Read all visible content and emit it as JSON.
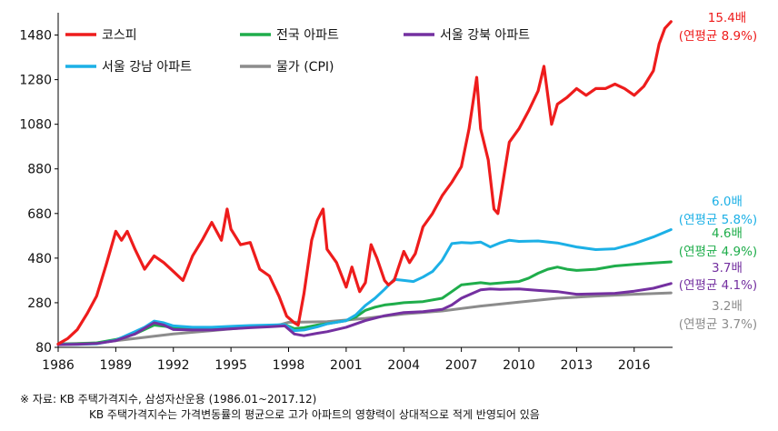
{
  "chart_data": {
    "type": "line",
    "title": "",
    "xlabel": "",
    "ylabel": "",
    "xlim": [
      1986.0,
      2018.0
    ],
    "ylim": [
      80,
      1580
    ],
    "y_ticks": [
      80,
      280,
      480,
      680,
      880,
      1080,
      1280,
      1480
    ],
    "x_ticks": [
      1986,
      1989,
      1992,
      1995,
      1998,
      2001,
      2004,
      2007,
      2010,
      2013,
      2016
    ],
    "grid": false,
    "legend_position": "top-left",
    "series": [
      {
        "name": "코스피",
        "color": "#ee1c1c",
        "multiple": "15.4배",
        "cagr": "(연평균 8.9%)",
        "x": [
          1986.0,
          1986.5,
          1987.0,
          1987.5,
          1988.0,
          1988.5,
          1989.0,
          1989.3,
          1989.6,
          1990.0,
          1990.5,
          1991.0,
          1991.5,
          1992.0,
          1992.5,
          1993.0,
          1993.5,
          1994.0,
          1994.5,
          1994.8,
          1995.0,
          1995.5,
          1996.0,
          1996.5,
          1997.0,
          1997.5,
          1997.9,
          1998.3,
          1998.5,
          1998.8,
          1999.2,
          1999.5,
          1999.8,
          2000.0,
          2000.5,
          2001.0,
          2001.3,
          2001.7,
          2002.0,
          2002.3,
          2002.6,
          2003.0,
          2003.2,
          2003.5,
          2004.0,
          2004.3,
          2004.6,
          2005.0,
          2005.5,
          2006.0,
          2006.5,
          2007.0,
          2007.4,
          2007.8,
          2008.0,
          2008.4,
          2008.7,
          2008.9,
          2009.2,
          2009.5,
          2010.0,
          2010.5,
          2011.0,
          2011.3,
          2011.7,
          2012.0,
          2012.5,
          2013.0,
          2013.5,
          2014.0,
          2014.5,
          2015.0,
          2015.5,
          2016.0,
          2016.5,
          2017.0,
          2017.3,
          2017.6,
          2017.92
        ],
        "values": [
          95,
          120,
          160,
          230,
          310,
          450,
          600,
          560,
          600,
          520,
          430,
          490,
          460,
          420,
          380,
          490,
          560,
          640,
          560,
          700,
          610,
          540,
          550,
          430,
          400,
          310,
          220,
          190,
          180,
          320,
          560,
          650,
          700,
          520,
          460,
          350,
          440,
          330,
          370,
          540,
          480,
          380,
          360,
          380,
          510,
          460,
          500,
          620,
          680,
          760,
          820,
          890,
          1060,
          1290,
          1060,
          920,
          700,
          680,
          840,
          1000,
          1060,
          1140,
          1230,
          1340,
          1080,
          1170,
          1200,
          1240,
          1210,
          1240,
          1240,
          1260,
          1240,
          1210,
          1250,
          1320,
          1440,
          1510,
          1540
        ]
      },
      {
        "name": "전국 아파트",
        "color": "#1fad4b",
        "multiple": "4.6배",
        "cagr": "(연평균 4.9%)",
        "x": [
          1986.0,
          1987.0,
          1988.0,
          1989.0,
          1990.0,
          1990.5,
          1991.0,
          1991.5,
          1992.0,
          1993.0,
          1994.0,
          1995.0,
          1996.0,
          1997.0,
          1997.8,
          1998.3,
          1998.8,
          1999.5,
          2000.0,
          2001.0,
          2001.5,
          2002.0,
          2002.5,
          2003.0,
          2003.5,
          2004.0,
          2005.0,
          2006.0,
          2006.5,
          2007.0,
          2008.0,
          2008.5,
          2009.0,
          2009.5,
          2010.0,
          2010.5,
          2011.0,
          2011.5,
          2012.0,
          2012.5,
          2013.0,
          2014.0,
          2015.0,
          2016.0,
          2017.0,
          2017.92
        ],
        "values": [
          95,
          96,
          100,
          115,
          140,
          160,
          180,
          175,
          168,
          166,
          167,
          170,
          173,
          178,
          182,
          164,
          168,
          180,
          186,
          200,
          216,
          246,
          260,
          270,
          275,
          280,
          285,
          300,
          330,
          360,
          370,
          365,
          368,
          372,
          375,
          390,
          412,
          430,
          440,
          430,
          425,
          430,
          445,
          452,
          458,
          463
        ]
      },
      {
        "name": "서울 강북 아파트",
        "color": "#7430a0",
        "multiple": "3.7배",
        "cagr": "(연평균 4.1%)",
        "x": [
          1986.0,
          1987.0,
          1988.0,
          1989.0,
          1990.0,
          1990.5,
          1991.0,
          1991.5,
          1992.0,
          1993.0,
          1994.0,
          1995.0,
          1996.0,
          1997.0,
          1997.8,
          1998.3,
          1998.8,
          1999.5,
          2000.0,
          2001.0,
          2002.0,
          2003.0,
          2004.0,
          2005.0,
          2006.0,
          2006.5,
          2007.0,
          2008.0,
          2008.5,
          2009.0,
          2010.0,
          2011.0,
          2012.0,
          2013.0,
          2014.0,
          2015.0,
          2016.0,
          2017.0,
          2017.92
        ],
        "values": [
          92,
          94,
          97,
          110,
          140,
          165,
          190,
          180,
          160,
          158,
          158,
          163,
          168,
          172,
          176,
          140,
          132,
          143,
          150,
          170,
          200,
          222,
          236,
          240,
          250,
          270,
          300,
          338,
          342,
          340,
          342,
          335,
          330,
          318,
          320,
          322,
          332,
          345,
          366
        ]
      },
      {
        "name": "서울 강남 아파트",
        "color": "#1cb0e6",
        "multiple": "6.0배",
        "cagr": "(연평균 5.8%)",
        "x": [
          1986.0,
          1987.0,
          1988.0,
          1989.0,
          1990.0,
          1990.5,
          1991.0,
          1991.5,
          1992.0,
          1993.0,
          1994.0,
          1995.0,
          1996.0,
          1997.0,
          1997.8,
          1998.3,
          1998.8,
          1999.5,
          2000.0,
          2001.0,
          2001.5,
          2002.0,
          2002.5,
          2003.0,
          2003.5,
          2004.0,
          2004.5,
          2005.0,
          2005.5,
          2006.0,
          2006.5,
          2007.0,
          2007.5,
          2008.0,
          2008.5,
          2009.0,
          2009.5,
          2010.0,
          2011.0,
          2012.0,
          2013.0,
          2014.0,
          2015.0,
          2016.0,
          2017.0,
          2017.92
        ],
        "values": [
          93,
          93,
          96,
          112,
          150,
          170,
          198,
          190,
          176,
          170,
          170,
          174,
          178,
          180,
          182,
          155,
          158,
          172,
          185,
          200,
          225,
          268,
          300,
          340,
          385,
          380,
          375,
          395,
          420,
          470,
          545,
          550,
          548,
          552,
          530,
          548,
          560,
          555,
          557,
          548,
          530,
          518,
          522,
          545,
          575,
          608
        ]
      },
      {
        "name": "물가 (CPI)",
        "color": "#8c8c8c",
        "multiple": "3.2배",
        "cagr": "(연평균 3.7%)",
        "x": [
          1986.0,
          1988.0,
          1990.0,
          1992.0,
          1994.0,
          1996.0,
          1997.5,
          1998.0,
          2000.0,
          2002.0,
          2004.0,
          2006.0,
          2008.0,
          2010.0,
          2012.0,
          2014.0,
          2016.0,
          2017.92
        ],
        "values": [
          95,
          100,
          120,
          140,
          155,
          170,
          180,
          192,
          195,
          210,
          230,
          243,
          265,
          283,
          300,
          310,
          318,
          324
        ]
      }
    ]
  },
  "footnote": {
    "source": "※ 자료: KB 주택가격지수, 삼성자산운용 (1986.01~2017.12)",
    "note": "KB 주택가격지수는 가격변동률의 평균으로 고가 아파트의 영향력이 상대적으로 적게 반영되어 있음"
  }
}
